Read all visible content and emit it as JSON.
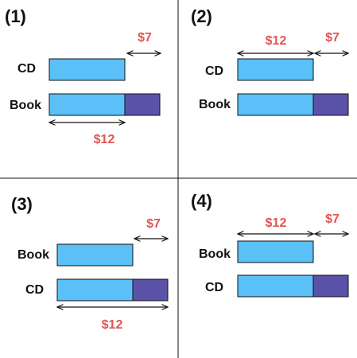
{
  "colors": {
    "base_bar": "#5ac0f7",
    "extra_bar": "#5a52a9",
    "price_text": "#e05555",
    "label_text": "#111111"
  },
  "panels": [
    {
      "number": "(1)",
      "top_item": "CD",
      "bottom_item": "Book",
      "base_price": "$12",
      "difference": "$7"
    },
    {
      "number": "(2)",
      "top_item": "CD",
      "bottom_item": "Book",
      "base_price": "$12",
      "difference": "$7"
    },
    {
      "number": "(3)",
      "top_item": "Book",
      "bottom_item": "CD",
      "base_price": "$12",
      "difference": "$7"
    },
    {
      "number": "(4)",
      "top_item": "Book",
      "bottom_item": "CD",
      "base_price": "$12",
      "difference": "$7"
    }
  ]
}
